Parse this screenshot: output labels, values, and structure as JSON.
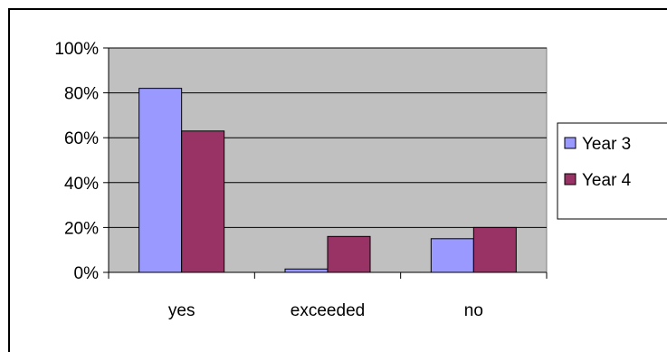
{
  "chart_data": {
    "type": "bar",
    "categories": [
      "yes",
      "exceeded",
      "no"
    ],
    "series": [
      {
        "name": "Year 3",
        "values": [
          82,
          1.5,
          15
        ],
        "color": "#9999ff"
      },
      {
        "name": "Year 4",
        "values": [
          63,
          16,
          20
        ],
        "color": "#993366"
      }
    ],
    "ylim": [
      0,
      100
    ],
    "y_ticks": [
      0,
      20,
      40,
      60,
      80,
      100
    ],
    "y_tick_format": "percent",
    "plot_background": "#c0c0c0",
    "grid": true,
    "legend_position": "right"
  }
}
